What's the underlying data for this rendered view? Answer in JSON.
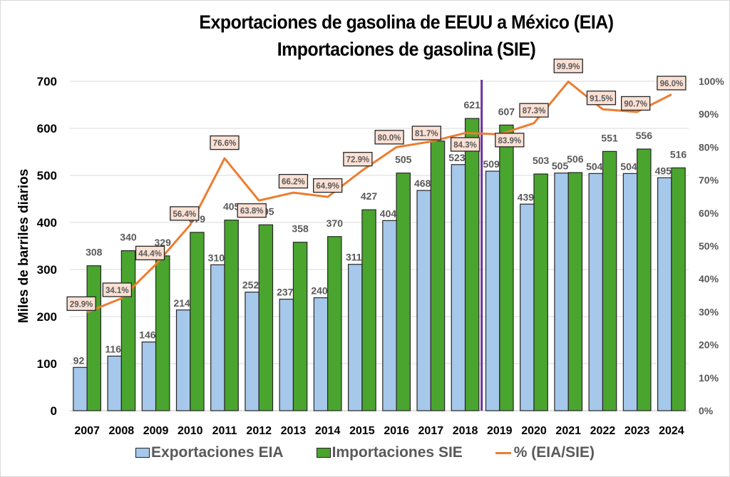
{
  "chart_data": {
    "type": "bar",
    "title": [
      "Exportaciones de gasolina de EEUU a México (EIA)",
      "Importaciones de gasolina (SIE)"
    ],
    "xlabel": "",
    "ylabel": "Miles de barriles diarios",
    "y2label": "",
    "ylim": [
      0,
      700
    ],
    "y2lim": [
      0,
      1.0
    ],
    "yticks": [
      "0",
      "100",
      "200",
      "300",
      "400",
      "500",
      "600",
      "700"
    ],
    "y2ticks": [
      "0%",
      "10%",
      "20%",
      "30%",
      "40%",
      "50%",
      "60%",
      "70%",
      "80%",
      "90%",
      "100%"
    ],
    "grid": true,
    "legend_position": "bottom",
    "categories": [
      "2007",
      "2008",
      "2009",
      "2010",
      "2011",
      "2012",
      "2013",
      "2014",
      "2015",
      "2016",
      "2017",
      "2018",
      "2019",
      "2020",
      "2021",
      "2022",
      "2023",
      "2024"
    ],
    "series": [
      {
        "name": "Exportaciones EIA",
        "type": "bar",
        "axis": "left",
        "color": "#a6c8ea",
        "values": [
          92,
          116,
          146,
          214,
          310,
          252,
          237,
          240,
          311,
          404,
          468,
          523,
          509,
          439,
          505,
          504,
          504,
          495
        ],
        "labels": [
          "92",
          "116",
          "146",
          "214",
          "310",
          "252",
          "237",
          "240",
          "311",
          "404",
          "468",
          "523",
          "509",
          "439",
          "505",
          "504",
          "504",
          "495"
        ]
      },
      {
        "name": "Importaciones SIE",
        "type": "bar",
        "axis": "left",
        "color": "#4aa52e",
        "values": [
          308,
          340,
          329,
          379,
          405,
          395,
          358,
          370,
          427,
          505,
          573,
          621,
          607,
          503,
          506,
          551,
          556,
          516
        ],
        "labels": [
          "308",
          "340",
          "329",
          "379",
          "405",
          "395",
          "358",
          "370",
          "427",
          "505",
          "",
          "621",
          "607",
          "503",
          "506",
          "551",
          "556",
          "516"
        ]
      },
      {
        "name": "% (EIA/SIE)",
        "type": "line",
        "axis": "right",
        "color": "#ed7d31",
        "values": [
          0.299,
          0.341,
          0.444,
          0.564,
          0.766,
          0.638,
          0.662,
          0.649,
          0.729,
          0.8,
          0.817,
          0.843,
          0.839,
          0.873,
          0.999,
          0.915,
          0.907,
          0.96
        ],
        "labels": [
          "29.9%",
          "34.1%",
          "44.4%",
          "56.4%",
          "76.6%",
          "63.8%",
          "66.2%",
          "64.9%",
          "72.9%",
          "80.0%",
          "81.7%",
          "84.3%",
          "83.9%",
          "87.3%",
          "99.9%",
          "91.5%",
          "90.7%",
          "96.0%"
        ]
      }
    ],
    "annotations": [
      {
        "type": "vertical-line",
        "between": [
          "2018",
          "2019"
        ],
        "color": "#7030a0"
      }
    ]
  },
  "legend": {
    "items": [
      "Exportaciones EIA",
      "Importaciones SIE",
      "% (EIA/SIE)"
    ]
  }
}
